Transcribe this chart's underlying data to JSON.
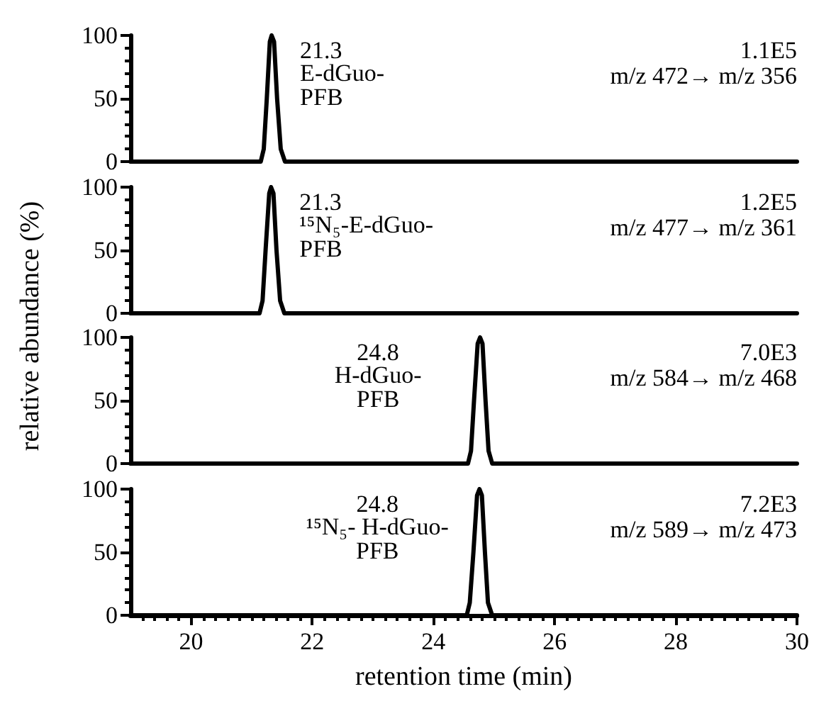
{
  "chart_data": [
    {
      "type": "line",
      "ylabel": "relative abundance (%)",
      "xlim": [
        19,
        30
      ],
      "ylim": [
        0,
        100
      ],
      "yticks": [
        0,
        {
          "value": 10,
          "label": null
        },
        {
          "value": 20,
          "label": null
        },
        {
          "value": 30,
          "label": null
        },
        {
          "value": 40,
          "label": null
        },
        50,
        {
          "value": 60,
          "label": null
        },
        {
          "value": 70,
          "label": null
        },
        {
          "value": 80,
          "label": null
        },
        {
          "value": 90,
          "label": null
        },
        100
      ],
      "tick_labels": "y",
      "marker": "none",
      "grid": false,
      "series": [
        {
          "color": "#000000",
          "x": [
            19,
            21.15,
            21.2,
            21.25,
            21.3,
            21.33,
            21.37,
            21.42,
            21.48,
            21.55,
            30
          ],
          "values": [
            0,
            0,
            10,
            50,
            95,
            100,
            95,
            50,
            10,
            0,
            0
          ]
        }
      ],
      "annotations": [
        "21.3",
        "E-dGuo-\nPFB",
        "1.1E5",
        "m/z 472→ m/z 356"
      ]
    },
    {
      "type": "line",
      "xlim": [
        19,
        30
      ],
      "ylim": [
        0,
        100
      ],
      "yticks": [
        0,
        {
          "value": 10,
          "label": null
        },
        {
          "value": 20,
          "label": null
        },
        {
          "value": 30,
          "label": null
        },
        {
          "value": 40,
          "label": null
        },
        50,
        {
          "value": 60,
          "label": null
        },
        {
          "value": 70,
          "label": null
        },
        {
          "value": 80,
          "label": null
        },
        {
          "value": 90,
          "label": null
        },
        100
      ],
      "tick_labels": "y",
      "marker": "none",
      "grid": false,
      "series": [
        {
          "color": "#000000",
          "x": [
            19,
            21.13,
            21.18,
            21.23,
            21.29,
            21.32,
            21.36,
            21.41,
            21.47,
            21.54,
            30
          ],
          "values": [
            0,
            0,
            10,
            50,
            95,
            100,
            95,
            50,
            10,
            0,
            0
          ]
        }
      ],
      "annotations": [
        "21.3",
        "¹⁵N₅-E-dGuo-\nPFB",
        "1.2E5",
        "m/z 477→ m/z 361"
      ]
    },
    {
      "type": "line",
      "xlim": [
        19,
        30
      ],
      "ylim": [
        0,
        100
      ],
      "yticks": [
        0,
        {
          "value": 10,
          "label": null
        },
        {
          "value": 20,
          "label": null
        },
        {
          "value": 30,
          "label": null
        },
        {
          "value": 40,
          "label": null
        },
        50,
        {
          "value": 60,
          "label": null
        },
        {
          "value": 70,
          "label": null
        },
        {
          "value": 80,
          "label": null
        },
        {
          "value": 90,
          "label": null
        },
        100
      ],
      "tick_labels": "y",
      "marker": "none",
      "grid": false,
      "series": [
        {
          "color": "#000000",
          "x": [
            19,
            24.57,
            24.62,
            24.67,
            24.73,
            24.77,
            24.81,
            24.86,
            24.91,
            24.97,
            30
          ],
          "values": [
            0,
            0,
            10,
            50,
            95,
            100,
            95,
            50,
            10,
            0,
            0
          ]
        }
      ],
      "annotations": [
        "24.8",
        "H-dGuo-\nPFB",
        "7.0E3",
        "m/z 584→ m/z 468"
      ]
    },
    {
      "type": "line",
      "xlabel": "retention time (min)",
      "xlim": [
        19,
        30
      ],
      "ylim": [
        0,
        100
      ],
      "xticks": [
        {
          "value": 19.2,
          "label": null
        },
        {
          "value": 19.4,
          "label": null
        },
        {
          "value": 19.6,
          "label": null
        },
        {
          "value": 19.8,
          "label": null
        },
        20,
        {
          "value": 20.2,
          "label": null
        },
        {
          "value": 20.4,
          "label": null
        },
        {
          "value": 20.6,
          "label": null
        },
        {
          "value": 20.8,
          "label": null
        },
        {
          "value": 21,
          "label": null
        },
        {
          "value": 21.2,
          "label": null
        },
        {
          "value": 21.4,
          "label": null
        },
        {
          "value": 21.6,
          "label": null
        },
        {
          "value": 21.8,
          "label": null
        },
        22,
        {
          "value": 22.2,
          "label": null
        },
        {
          "value": 22.4,
          "label": null
        },
        {
          "value": 22.6,
          "label": null
        },
        {
          "value": 22.8,
          "label": null
        },
        {
          "value": 23,
          "label": null
        },
        {
          "value": 23.2,
          "label": null
        },
        {
          "value": 23.4,
          "label": null
        },
        {
          "value": 23.6,
          "label": null
        },
        {
          "value": 23.8,
          "label": null
        },
        24,
        {
          "value": 24.2,
          "label": null
        },
        {
          "value": 24.4,
          "label": null
        },
        {
          "value": 24.6,
          "label": null
        },
        {
          "value": 24.8,
          "label": null
        },
        {
          "value": 25,
          "label": null
        },
        {
          "value": 25.2,
          "label": null
        },
        {
          "value": 25.4,
          "label": null
        },
        {
          "value": 25.6,
          "label": null
        },
        {
          "value": 25.8,
          "label": null
        },
        26,
        {
          "value": 26.2,
          "label": null
        },
        {
          "value": 26.4,
          "label": null
        },
        {
          "value": 26.6,
          "label": null
        },
        {
          "value": 26.8,
          "label": null
        },
        {
          "value": 27,
          "label": null
        },
        {
          "value": 27.2,
          "label": null
        },
        {
          "value": 27.4,
          "label": null
        },
        {
          "value": 27.6,
          "label": null
        },
        {
          "value": 27.8,
          "label": null
        },
        28,
        {
          "value": 28.2,
          "label": null
        },
        {
          "value": 28.4,
          "label": null
        },
        {
          "value": 28.6,
          "label": null
        },
        {
          "value": 28.8,
          "label": null
        },
        {
          "value": 29,
          "label": null
        },
        {
          "value": 29.2,
          "label": null
        },
        {
          "value": 29.4,
          "label": null
        },
        {
          "value": 29.6,
          "label": null
        },
        {
          "value": 29.8,
          "label": null
        },
        30
      ],
      "yticks": [
        0,
        {
          "value": 10,
          "label": null
        },
        {
          "value": 20,
          "label": null
        },
        {
          "value": 30,
          "label": null
        },
        {
          "value": 40,
          "label": null
        },
        50,
        {
          "value": 60,
          "label": null
        },
        {
          "value": 70,
          "label": null
        },
        {
          "value": 80,
          "label": null
        },
        {
          "value": 90,
          "label": null
        },
        100
      ],
      "marker": "none",
      "grid": false,
      "series": [
        {
          "color": "#000000",
          "x": [
            19,
            24.55,
            24.6,
            24.66,
            24.72,
            24.76,
            24.8,
            24.85,
            24.9,
            24.97,
            30
          ],
          "values": [
            0,
            0,
            10,
            50,
            95,
            100,
            95,
            50,
            10,
            0,
            0
          ]
        }
      ],
      "annotations": [
        "24.8",
        "¹⁵N₅- H-dGuo-\nPFB",
        "7.2E3",
        "m/z 589→ m/z 473"
      ]
    }
  ]
}
